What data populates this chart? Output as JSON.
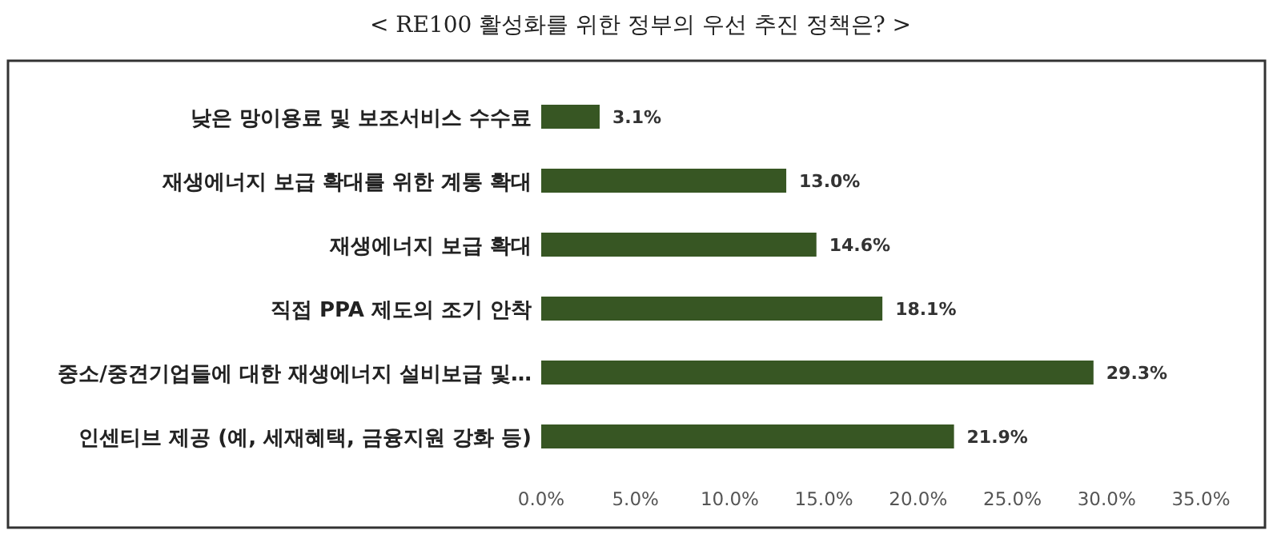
{
  "chart_data": {
    "type": "bar",
    "orientation": "horizontal",
    "title": "< RE100 활성화를 위한 정부의 우선 추진 정책은? >",
    "categories": [
      "낮은 망이용료 및 보조서비스 수수료",
      "재생에너지 보급 확대를 위한 계통 확대",
      "재생에너지 보급 확대",
      "직접 PPA 제도의 조기 안착",
      "중소/중견기업들에 대한 재생에너지 설비보급 및…",
      "인센티브 제공 (예, 세재혜택, 금융지원 강화 등)"
    ],
    "values": [
      3.1,
      13.0,
      14.6,
      18.1,
      29.3,
      21.9
    ],
    "value_labels": [
      "3.1%",
      "13.0%",
      "14.6%",
      "18.1%",
      "29.3%",
      "21.9%"
    ],
    "color": "#375623",
    "xlim": [
      0,
      35
    ],
    "xticks": [
      {
        "value": 0,
        "label": "0.0%"
      },
      {
        "value": 5,
        "label": "5.0%"
      },
      {
        "value": 10,
        "label": "10.0%"
      },
      {
        "value": 15,
        "label": "15.0%"
      },
      {
        "value": 20,
        "label": "20.0%"
      },
      {
        "value": 25,
        "label": "25.0%"
      },
      {
        "value": 30,
        "label": "30.0%"
      },
      {
        "value": 35,
        "label": "35.0%"
      }
    ],
    "grid": false
  }
}
